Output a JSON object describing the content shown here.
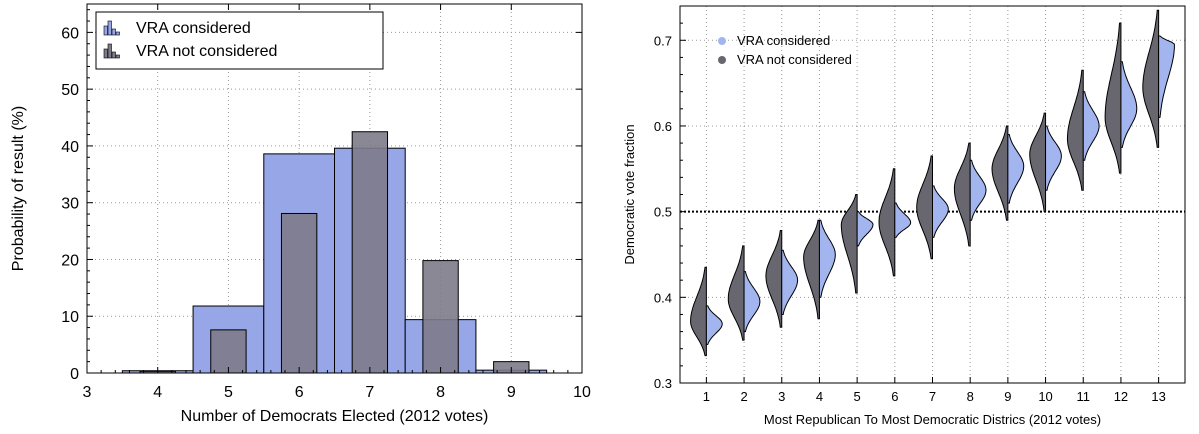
{
  "chart_data": [
    {
      "type": "bar",
      "xlabel": "Number of Democrats Elected (2012 votes)",
      "ylabel": "Probability of result (%)",
      "xlim": [
        3,
        10
      ],
      "ylim": [
        0,
        65
      ],
      "xticks": [
        "3",
        "4",
        "5",
        "6",
        "7",
        "8",
        "9",
        "10"
      ],
      "yticks": [
        "0",
        "10",
        "20",
        "30",
        "40",
        "50",
        "60"
      ],
      "grid": true,
      "legend_position": "top-left",
      "categories": [
        4,
        5,
        6,
        7,
        8,
        9
      ],
      "series": [
        {
          "name": "VRA considered",
          "color": "#97a6e6",
          "values": [
            0.4,
            11.8,
            38.6,
            39.6,
            9.4,
            0.5
          ]
        },
        {
          "name": "VRA not considered",
          "color": "#7d7b8a",
          "values": [
            0.3,
            7.6,
            28.1,
            42.5,
            19.8,
            2.0
          ]
        }
      ]
    },
    {
      "type": "violin",
      "xlabel": "Most Republican To Most Democratic Districs (2012 votes)",
      "ylabel": "Democratic vote fraction",
      "xlim": [
        0.3,
        13.7
      ],
      "ylim": [
        0.3,
        0.74
      ],
      "xticks": [
        "1",
        "2",
        "3",
        "4",
        "5",
        "6",
        "7",
        "8",
        "9",
        "10",
        "11",
        "12",
        "13"
      ],
      "yticks": [
        "0.3",
        "0.4",
        "0.5",
        "0.6",
        "0.7"
      ],
      "grid": true,
      "reference_line": 0.5,
      "legend_position": "top-left",
      "series": [
        {
          "name": "VRA considered",
          "color": "#a3b5ee"
        },
        {
          "name": "VRA not considered",
          "color": "#68676f"
        }
      ],
      "districts": [
        {
          "x": 1,
          "vra_considered": {
            "median": 0.369,
            "min": 0.345,
            "max": 0.39
          },
          "vra_not_considered": {
            "median": 0.372,
            "min": 0.332,
            "max": 0.435
          }
        },
        {
          "x": 2,
          "vra_considered": {
            "median": 0.395,
            "min": 0.36,
            "max": 0.43
          },
          "vra_not_considered": {
            "median": 0.398,
            "min": 0.35,
            "max": 0.46
          }
        },
        {
          "x": 3,
          "vra_considered": {
            "median": 0.42,
            "min": 0.38,
            "max": 0.455
          },
          "vra_not_considered": {
            "median": 0.425,
            "min": 0.365,
            "max": 0.478
          }
        },
        {
          "x": 4,
          "vra_considered": {
            "median": 0.45,
            "min": 0.4,
            "max": 0.49
          },
          "vra_not_considered": {
            "median": 0.447,
            "min": 0.375,
            "max": 0.49
          }
        },
        {
          "x": 5,
          "vra_considered": {
            "median": 0.485,
            "min": 0.46,
            "max": 0.5
          },
          "vra_not_considered": {
            "median": 0.485,
            "min": 0.405,
            "max": 0.52
          }
        },
        {
          "x": 6,
          "vra_considered": {
            "median": 0.487,
            "min": 0.47,
            "max": 0.51
          },
          "vra_not_considered": {
            "median": 0.488,
            "min": 0.425,
            "max": 0.55
          }
        },
        {
          "x": 7,
          "vra_considered": {
            "median": 0.503,
            "min": 0.47,
            "max": 0.53
          },
          "vra_not_considered": {
            "median": 0.505,
            "min": 0.445,
            "max": 0.565
          }
        },
        {
          "x": 8,
          "vra_considered": {
            "median": 0.525,
            "min": 0.49,
            "max": 0.56
          },
          "vra_not_considered": {
            "median": 0.527,
            "min": 0.46,
            "max": 0.58
          }
        },
        {
          "x": 9,
          "vra_considered": {
            "median": 0.553,
            "min": 0.51,
            "max": 0.59
          },
          "vra_not_considered": {
            "median": 0.55,
            "min": 0.49,
            "max": 0.6
          }
        },
        {
          "x": 10,
          "vra_considered": {
            "median": 0.565,
            "min": 0.525,
            "max": 0.6
          },
          "vra_not_considered": {
            "median": 0.567,
            "min": 0.5,
            "max": 0.615
          }
        },
        {
          "x": 11,
          "vra_considered": {
            "median": 0.6,
            "min": 0.56,
            "max": 0.64
          },
          "vra_not_considered": {
            "median": 0.585,
            "min": 0.525,
            "max": 0.665
          }
        },
        {
          "x": 12,
          "vra_considered": {
            "median": 0.62,
            "min": 0.575,
            "max": 0.675
          },
          "vra_not_considered": {
            "median": 0.61,
            "min": 0.545,
            "max": 0.72
          }
        },
        {
          "x": 13,
          "vra_considered": {
            "median": 0.695,
            "min": 0.61,
            "max": 0.705
          },
          "vra_not_considered": {
            "median": 0.645,
            "min": 0.575,
            "max": 0.735
          }
        }
      ]
    }
  ]
}
